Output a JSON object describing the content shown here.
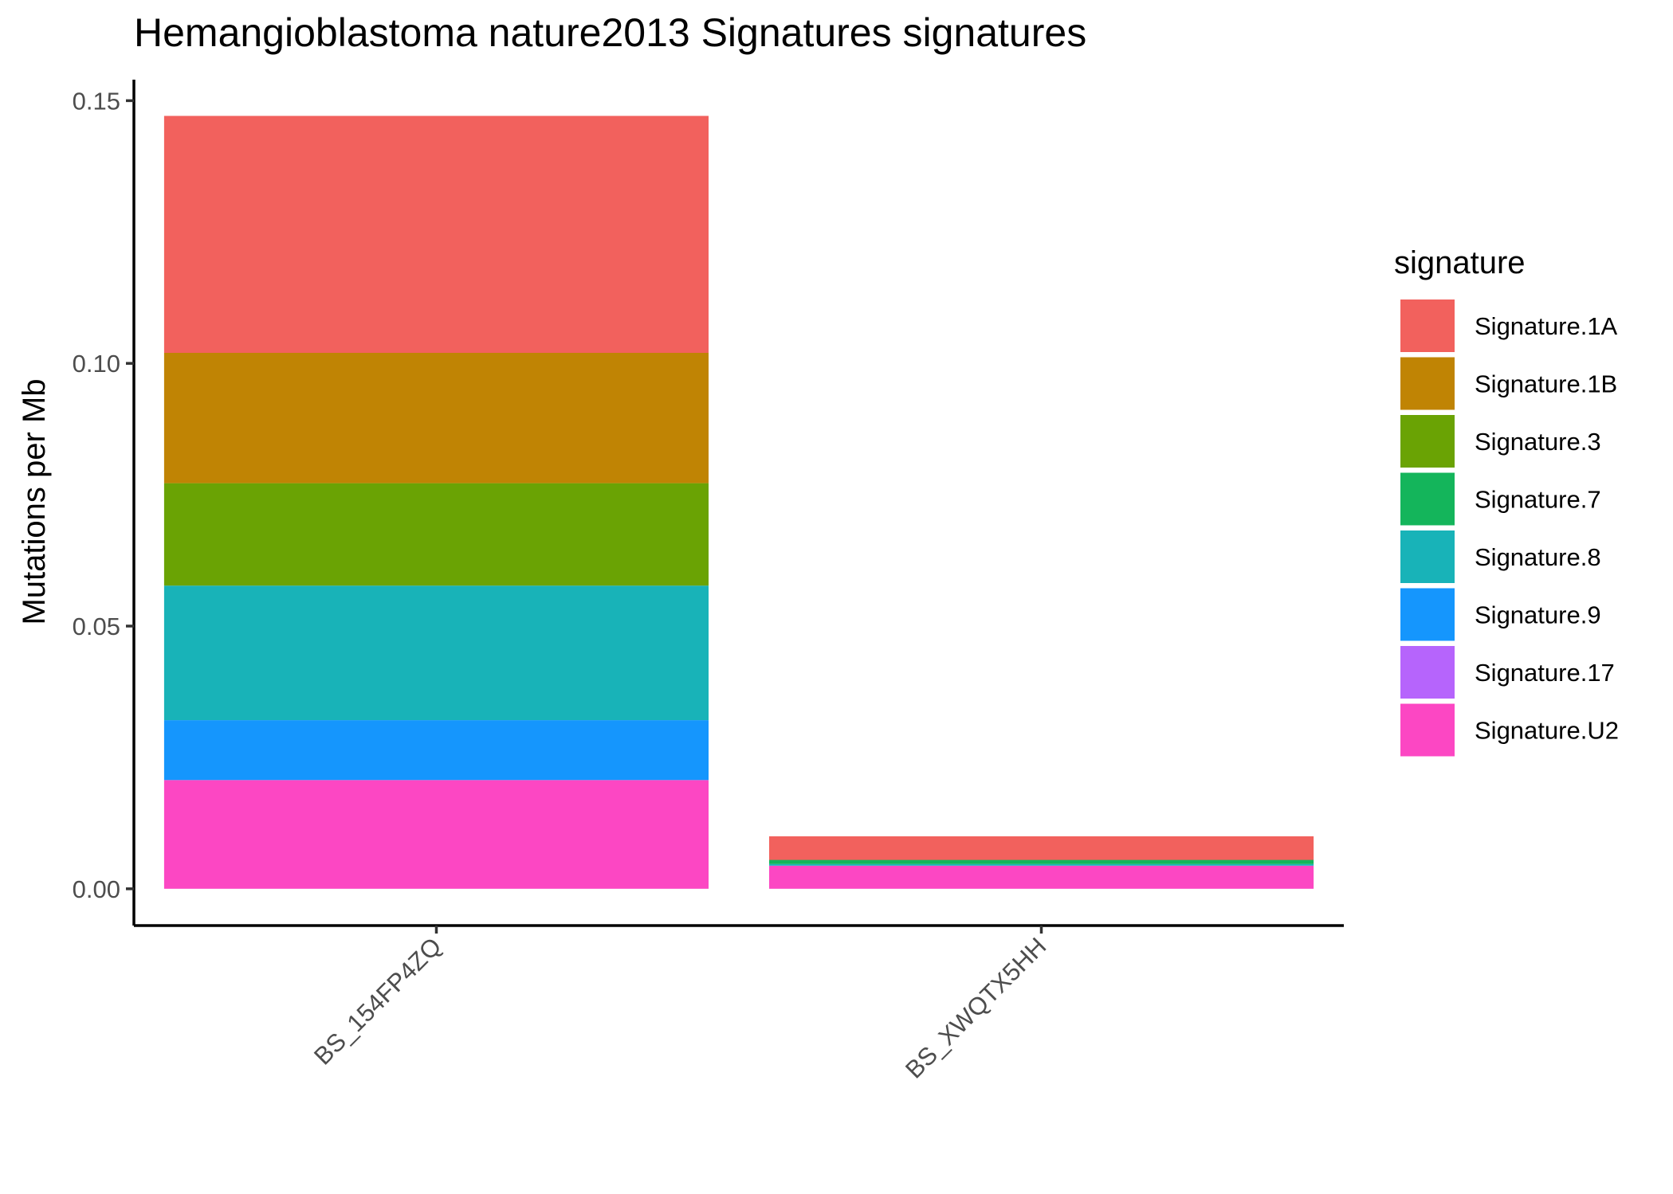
{
  "chart_data": {
    "type": "bar",
    "stacked": true,
    "title": "Hemangioblastoma nature2013 Signatures signatures",
    "xlabel": "",
    "ylabel": "Mutations per Mb",
    "ylim": [
      -0.007,
      0.154
    ],
    "yticks": [
      0.0,
      0.05,
      0.1,
      0.15
    ],
    "ytick_labels": [
      "0.00",
      "0.05",
      "0.10",
      "0.15"
    ],
    "categories": [
      "BS_154FP4ZQ",
      "BS_XWQTX5HH"
    ],
    "grid": false,
    "legend": {
      "title": "signature",
      "position": "right"
    },
    "series": [
      {
        "name": "Signature.1A",
        "color": "#F2615D",
        "values": [
          0.0451,
          0.0045
        ]
      },
      {
        "name": "Signature.1B",
        "color": "#C08404",
        "values": [
          0.0248,
          0.0
        ]
      },
      {
        "name": "Signature.3",
        "color": "#6AA304",
        "values": [
          0.0195,
          0.0
        ]
      },
      {
        "name": "Signature.7",
        "color": "#14B55B",
        "values": [
          0.0,
          0.0008
        ]
      },
      {
        "name": "Signature.8",
        "color": "#18B3B8",
        "values": [
          0.0256,
          0.0003
        ]
      },
      {
        "name": "Signature.9",
        "color": "#1596FD",
        "values": [
          0.0114,
          0.0
        ]
      },
      {
        "name": "Signature.17",
        "color": "#B664FC",
        "values": [
          0.0,
          0.0
        ]
      },
      {
        "name": "Signature.U2",
        "color": "#FC47C3",
        "values": [
          0.0207,
          0.0044
        ]
      }
    ],
    "stack_order_bottom_to_top": [
      "Signature.U2",
      "Signature.17",
      "Signature.9",
      "Signature.8",
      "Signature.7",
      "Signature.3",
      "Signature.1B",
      "Signature.1A"
    ]
  }
}
